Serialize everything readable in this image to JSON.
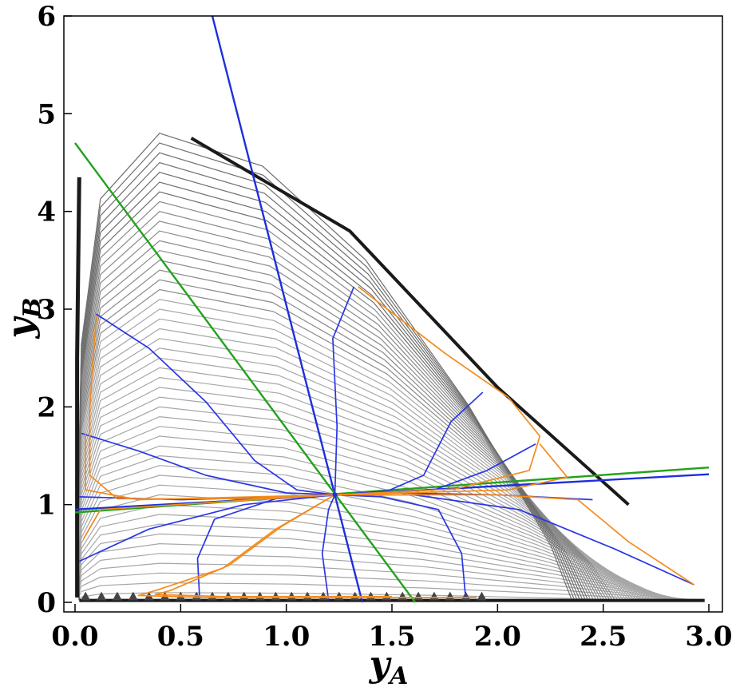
{
  "chart_data": {
    "type": "line",
    "xlabel": {
      "main": "y",
      "sub": "A"
    },
    "ylabel": {
      "main": "y",
      "sub": "B"
    },
    "xlim": [
      0.0,
      3.0
    ],
    "ylim": [
      0.0,
      6.0
    ],
    "x_ticks": [
      "0.0",
      "0.5",
      "1.0",
      "1.5",
      "2.0",
      "2.5",
      "3.0"
    ],
    "y_ticks": [
      "0",
      "1",
      "2",
      "3",
      "4",
      "5",
      "6"
    ],
    "fixed_point": [
      1.23,
      1.1
    ],
    "colors": {
      "contours": "#9a9a9a",
      "nullcline_blue": "#1e2fdc",
      "nullcline_green": "#22a21c",
      "trajectories_blue": "#2b36e6",
      "trajectories_orange": "#f28c1f",
      "boundary": "#1a1a1a",
      "markers": "#444444"
    },
    "series": [
      {
        "role": "nullcline",
        "color": "blue",
        "points": [
          [
            0.65,
            6.0
          ],
          [
            1.36,
            0.0
          ]
        ]
      },
      {
        "role": "nullcline",
        "color": "green",
        "points": [
          [
            0.0,
            4.7
          ],
          [
            1.61,
            0.0
          ]
        ]
      },
      {
        "role": "nullcline",
        "color": "blue",
        "points": [
          [
            0.0,
            0.95
          ],
          [
            3.0,
            1.31
          ]
        ]
      },
      {
        "role": "nullcline",
        "color": "green",
        "points": [
          [
            0.0,
            0.92
          ],
          [
            3.0,
            1.38
          ]
        ]
      },
      {
        "role": "trajectory",
        "color": "blue",
        "points": [
          [
            0.1,
            2.95
          ],
          [
            0.35,
            2.6
          ],
          [
            0.62,
            2.05
          ],
          [
            0.85,
            1.45
          ],
          [
            1.05,
            1.15
          ],
          [
            1.23,
            1.1
          ]
        ]
      },
      {
        "role": "trajectory",
        "color": "blue",
        "points": [
          [
            0.03,
            1.73
          ],
          [
            0.3,
            1.55
          ],
          [
            0.62,
            1.3
          ],
          [
            1.0,
            1.12
          ],
          [
            1.23,
            1.1
          ]
        ]
      },
      {
        "role": "trajectory",
        "color": "blue",
        "points": [
          [
            0.02,
            1.08
          ],
          [
            0.5,
            1.05
          ],
          [
            1.0,
            1.08
          ],
          [
            1.23,
            1.1
          ]
        ]
      },
      {
        "role": "trajectory",
        "color": "blue",
        "points": [
          [
            0.02,
            0.42
          ],
          [
            0.35,
            0.75
          ],
          [
            0.8,
            1.0
          ],
          [
            1.23,
            1.1
          ]
        ]
      },
      {
        "role": "trajectory",
        "color": "blue",
        "points": [
          [
            0.59,
            0.02
          ],
          [
            0.58,
            0.45
          ],
          [
            0.66,
            0.85
          ],
          [
            0.95,
            1.06
          ],
          [
            1.23,
            1.1
          ]
        ]
      },
      {
        "role": "trajectory",
        "color": "blue",
        "points": [
          [
            1.2,
            0.02
          ],
          [
            1.17,
            0.5
          ],
          [
            1.2,
            0.95
          ],
          [
            1.23,
            1.1
          ]
        ]
      },
      {
        "role": "trajectory",
        "color": "blue",
        "points": [
          [
            1.85,
            0.02
          ],
          [
            1.83,
            0.5
          ],
          [
            1.72,
            0.95
          ],
          [
            1.45,
            1.08
          ],
          [
            1.23,
            1.1
          ]
        ]
      },
      {
        "role": "trajectory",
        "color": "blue",
        "points": [
          [
            2.93,
            0.18
          ],
          [
            2.55,
            0.55
          ],
          [
            2.1,
            0.95
          ],
          [
            1.6,
            1.1
          ],
          [
            1.23,
            1.1
          ]
        ]
      },
      {
        "role": "trajectory",
        "color": "blue",
        "points": [
          [
            2.45,
            1.05
          ],
          [
            2.0,
            1.1
          ],
          [
            1.5,
            1.12
          ],
          [
            1.23,
            1.1
          ]
        ]
      },
      {
        "role": "trajectory",
        "color": "blue",
        "points": [
          [
            2.18,
            1.62
          ],
          [
            1.95,
            1.35
          ],
          [
            1.7,
            1.15
          ],
          [
            1.23,
            1.1
          ]
        ]
      },
      {
        "role": "trajectory",
        "color": "blue",
        "points": [
          [
            1.93,
            2.15
          ],
          [
            1.78,
            1.85
          ],
          [
            1.65,
            1.3
          ],
          [
            1.48,
            1.14
          ],
          [
            1.23,
            1.1
          ]
        ]
      },
      {
        "role": "trajectory",
        "color": "blue",
        "points": [
          [
            1.32,
            3.23
          ],
          [
            1.22,
            2.7
          ],
          [
            1.24,
            1.8
          ],
          [
            1.23,
            1.1
          ]
        ]
      },
      {
        "role": "trajectory",
        "color": "orange",
        "points": [
          [
            0.1,
            2.93
          ],
          [
            0.07,
            2.0
          ],
          [
            0.07,
            1.3
          ],
          [
            0.2,
            1.06
          ],
          [
            0.8,
            1.06
          ],
          [
            1.23,
            1.1
          ]
        ]
      },
      {
        "role": "trajectory",
        "color": "orange",
        "points": [
          [
            0.05,
            1.72
          ],
          [
            0.05,
            1.15
          ],
          [
            0.3,
            1.05
          ],
          [
            1.23,
            1.1
          ]
        ]
      },
      {
        "role": "trajectory",
        "color": "orange",
        "points": [
          [
            0.04,
            0.65
          ],
          [
            0.12,
            0.95
          ],
          [
            0.7,
            1.03
          ],
          [
            1.23,
            1.1
          ]
        ]
      },
      {
        "role": "trajectory",
        "color": "orange",
        "points": [
          [
            1.23,
            1.1
          ],
          [
            0.95,
            0.75
          ],
          [
            0.7,
            0.35
          ],
          [
            0.38,
            0.12
          ],
          [
            0.3,
            0.07
          ],
          [
            0.6,
            0.05
          ],
          [
            1.3,
            0.05
          ],
          [
            1.9,
            0.05
          ]
        ]
      },
      {
        "role": "trajectory",
        "color": "orange",
        "points": [
          [
            1.23,
            1.1
          ],
          [
            0.98,
            0.78
          ],
          [
            0.73,
            0.38
          ],
          [
            0.45,
            0.12
          ],
          [
            0.38,
            0.08
          ],
          [
            0.7,
            0.06
          ],
          [
            1.5,
            0.06
          ]
        ]
      },
      {
        "role": "trajectory",
        "color": "orange",
        "points": [
          [
            1.34,
            3.23
          ],
          [
            1.75,
            2.55
          ],
          [
            2.05,
            2.1
          ],
          [
            2.2,
            1.7
          ],
          [
            2.15,
            1.35
          ],
          [
            1.8,
            1.16
          ],
          [
            1.23,
            1.1
          ]
        ]
      },
      {
        "role": "trajectory",
        "color": "orange",
        "points": [
          [
            2.2,
            1.62
          ],
          [
            2.33,
            1.28
          ],
          [
            2.05,
            1.15
          ],
          [
            1.23,
            1.1
          ]
        ]
      },
      {
        "role": "trajectory",
        "color": "orange",
        "points": [
          [
            2.93,
            0.18
          ],
          [
            2.62,
            0.62
          ],
          [
            2.38,
            1.05
          ],
          [
            2.0,
            1.1
          ],
          [
            1.23,
            1.1
          ]
        ]
      }
    ],
    "grid": false,
    "legend": "none"
  }
}
